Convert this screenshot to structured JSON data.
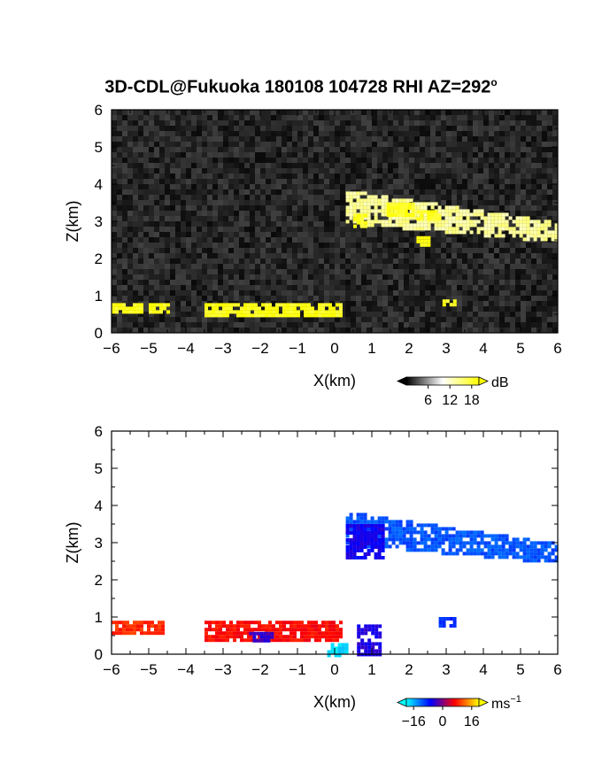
{
  "figure": {
    "title_main": "3D-CDL@Fukuoka 180108 104728 RHI AZ=292",
    "title_sup": "o"
  },
  "chart_data": [
    {
      "type": "heatmap",
      "name": "intensity-panel",
      "xlabel": "X(km)",
      "ylabel": "Z(km)",
      "xlim": [
        -6,
        6
      ],
      "ylim": [
        0,
        6
      ],
      "xticks": [
        -6,
        -5,
        -4,
        -3,
        -2,
        -1,
        0,
        1,
        2,
        3,
        4,
        5,
        6
      ],
      "yticks": [
        0,
        1,
        2,
        3,
        4,
        5,
        6
      ],
      "background": "noise",
      "colorbar": {
        "unit": "dB",
        "ticks": [
          6,
          12,
          18
        ],
        "range": [
          0,
          20
        ],
        "colors": [
          "#000000",
          "#ffffff",
          "#ffff00"
        ]
      },
      "features": [
        {
          "kind": "cloud",
          "x": [
            0.3,
            6.0
          ],
          "z": [
            2.3,
            3.8
          ],
          "value": 14
        },
        {
          "kind": "patch",
          "x": [
            0.5,
            0.8
          ],
          "z": [
            2.9,
            3.2
          ],
          "value": 19
        },
        {
          "kind": "patch",
          "x": [
            1.4,
            2.1
          ],
          "z": [
            3.2,
            3.5
          ],
          "value": 19
        },
        {
          "kind": "patch",
          "x": [
            2.2,
            2.8
          ],
          "z": [
            3.1,
            3.3
          ],
          "value": 19
        },
        {
          "kind": "patch",
          "x": [
            2.2,
            2.5
          ],
          "z": [
            2.4,
            2.6
          ],
          "value": 19
        },
        {
          "kind": "patch",
          "x": [
            -6.0,
            -5.2
          ],
          "z": [
            0.6,
            0.8
          ],
          "value": 19
        },
        {
          "kind": "patch",
          "x": [
            -5.0,
            -4.5
          ],
          "z": [
            0.6,
            0.8
          ],
          "value": 19
        },
        {
          "kind": "patch",
          "x": [
            -3.5,
            0.2
          ],
          "z": [
            0.5,
            0.8
          ],
          "value": 19
        },
        {
          "kind": "patch",
          "x": [
            2.9,
            3.2
          ],
          "z": [
            0.8,
            0.9
          ],
          "value": 19
        }
      ]
    },
    {
      "type": "heatmap",
      "name": "velocity-panel",
      "xlabel": "X(km)",
      "ylabel": "Z(km)",
      "xlim": [
        -6,
        6
      ],
      "ylim": [
        0,
        6
      ],
      "xticks": [
        -6,
        -5,
        -4,
        -3,
        -2,
        -1,
        0,
        1,
        2,
        3,
        4,
        5,
        6
      ],
      "yticks": [
        0,
        1,
        2,
        3,
        4,
        5,
        6
      ],
      "background": "white",
      "colorbar": {
        "unit": "ms",
        "unit_sup": "-1",
        "ticks": [
          -16,
          0,
          16
        ],
        "range": [
          -20,
          20
        ],
        "colors": [
          "#00ffff",
          "#0000ff",
          "#ff0000",
          "#ffff00"
        ]
      },
      "features": [
        {
          "kind": "cloud",
          "x": [
            0.3,
            6.0
          ],
          "z": [
            2.3,
            3.8
          ],
          "value": -11
        },
        {
          "kind": "patch",
          "x": [
            0.3,
            1.3
          ],
          "z": [
            2.6,
            3.5
          ],
          "value": -6
        },
        {
          "kind": "patch",
          "x": [
            -6.0,
            -4.6
          ],
          "z": [
            0.6,
            0.9
          ],
          "value": 9
        },
        {
          "kind": "patch",
          "x": [
            -3.5,
            0.2
          ],
          "z": [
            0.4,
            0.9
          ],
          "value": 7
        },
        {
          "kind": "patch",
          "x": [
            -2.3,
            -1.7
          ],
          "z": [
            0.4,
            0.6
          ],
          "value": -4
        },
        {
          "kind": "patch",
          "x": [
            0.6,
            1.2
          ],
          "z": [
            0.0,
            0.8
          ],
          "value": -5
        },
        {
          "kind": "patch",
          "x": [
            -0.2,
            0.3
          ],
          "z": [
            0.0,
            0.3
          ],
          "value": -18
        },
        {
          "kind": "patch",
          "x": [
            2.8,
            3.2
          ],
          "z": [
            0.8,
            1.0
          ],
          "value": -9
        }
      ]
    }
  ]
}
